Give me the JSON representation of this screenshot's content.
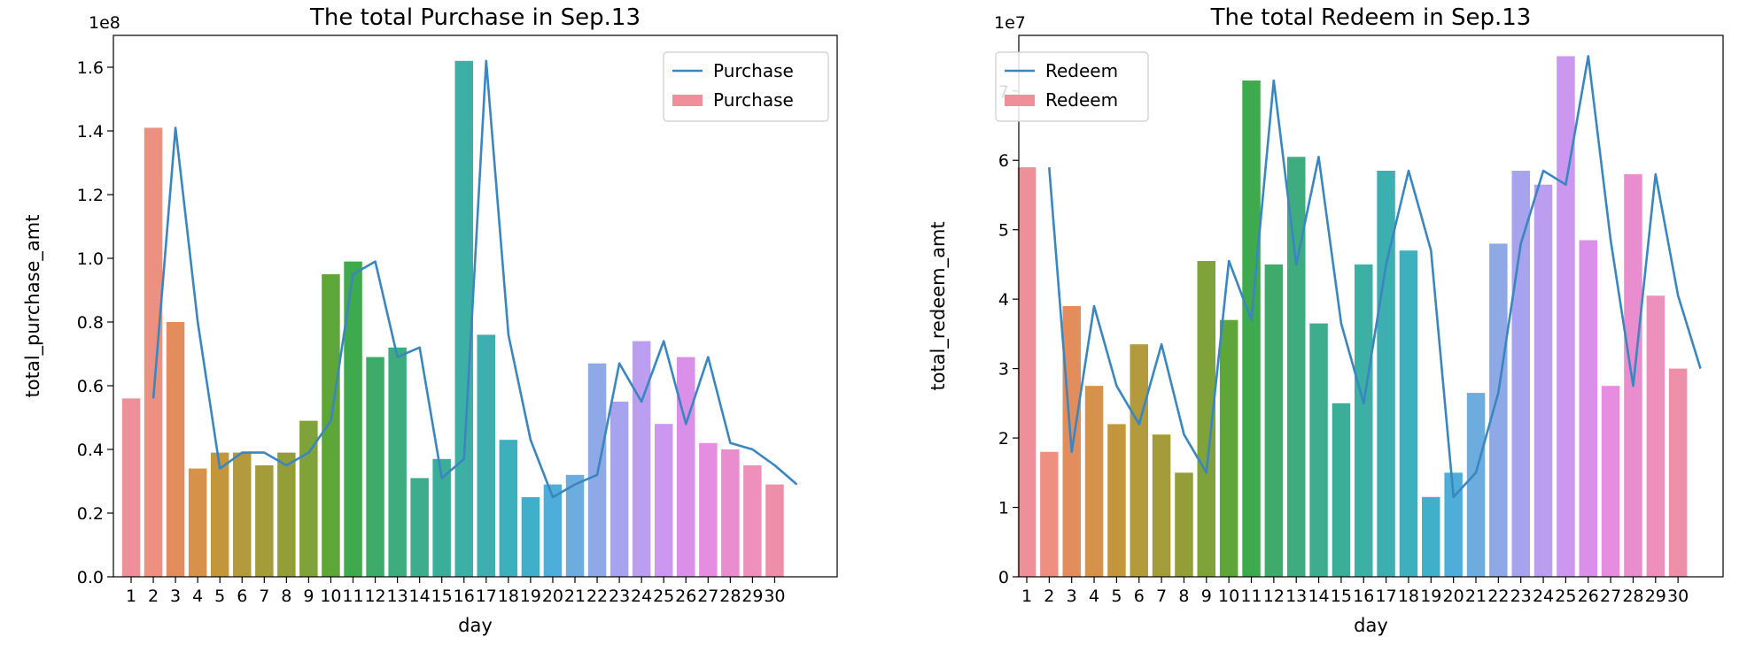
{
  "chart_data": [
    {
      "type": "bar",
      "title": "The total Purchase in Sep.13",
      "xlabel": "day",
      "ylabel": "total_purchase_amt",
      "scale_label": "1e8",
      "y_tick_labels": [
        "0.0",
        "0.2",
        "0.4",
        "0.6",
        "0.8",
        "1.0",
        "1.2",
        "1.4",
        "1.6"
      ],
      "ylim": [
        0,
        1.7
      ],
      "categories": [
        "1",
        "2",
        "3",
        "4",
        "5",
        "6",
        "7",
        "8",
        "9",
        "10",
        "11",
        "12",
        "13",
        "14",
        "15",
        "16",
        "17",
        "18",
        "19",
        "20",
        "21",
        "22",
        "23",
        "24",
        "25",
        "26",
        "27",
        "28",
        "29",
        "30"
      ],
      "series": [
        {
          "name": "Purchase",
          "kind": "bar",
          "values": [
            0.56,
            1.41,
            0.8,
            0.34,
            0.39,
            0.39,
            0.35,
            0.39,
            0.49,
            0.95,
            0.99,
            0.69,
            0.72,
            0.31,
            0.37,
            1.62,
            0.76,
            0.43,
            0.25,
            0.29,
            0.32,
            0.67,
            0.55,
            0.74,
            0.48,
            0.69,
            0.42,
            0.4,
            0.35,
            0.29
          ]
        },
        {
          "name": "Purchase",
          "kind": "line",
          "values": [
            0.56,
            1.41,
            0.8,
            0.34,
            0.39,
            0.39,
            0.35,
            0.39,
            0.49,
            0.95,
            0.99,
            0.69,
            0.72,
            0.31,
            0.37,
            1.62,
            0.76,
            0.43,
            0.25,
            0.29,
            0.32,
            0.67,
            0.55,
            0.74,
            0.48,
            0.69,
            0.42,
            0.4,
            0.35,
            0.29
          ]
        }
      ],
      "legend": {
        "placement": "top-right",
        "entries": [
          "Purchase",
          "Purchase"
        ]
      }
    },
    {
      "type": "bar",
      "title": "The total Redeem in Sep.13",
      "xlabel": "day",
      "ylabel": "total_redeem_amt",
      "scale_label": "1e7",
      "y_tick_labels": [
        "0",
        "1",
        "2",
        "3",
        "4",
        "5",
        "6",
        "7"
      ],
      "ylim": [
        0,
        7.8
      ],
      "categories": [
        "1",
        "2",
        "3",
        "4",
        "5",
        "6",
        "7",
        "8",
        "9",
        "10",
        "11",
        "12",
        "13",
        "14",
        "15",
        "16",
        "17",
        "18",
        "19",
        "20",
        "21",
        "22",
        "23",
        "24",
        "25",
        "26",
        "27",
        "28",
        "29",
        "30"
      ],
      "series": [
        {
          "name": "Redeem",
          "kind": "bar",
          "values": [
            5.9,
            1.8,
            3.9,
            2.75,
            2.2,
            3.35,
            2.05,
            1.5,
            4.55,
            3.7,
            7.15,
            4.5,
            6.05,
            3.65,
            2.5,
            4.5,
            5.85,
            4.7,
            1.15,
            1.5,
            2.65,
            4.8,
            5.85,
            5.65,
            7.5,
            4.85,
            2.75,
            5.8,
            4.05,
            3.0
          ]
        },
        {
          "name": "Redeem",
          "kind": "line",
          "values": [
            5.9,
            1.8,
            3.9,
            2.75,
            2.2,
            3.35,
            2.05,
            1.5,
            4.55,
            3.7,
            7.15,
            4.5,
            6.05,
            3.65,
            2.5,
            4.5,
            5.85,
            4.7,
            1.15,
            1.5,
            2.65,
            4.8,
            5.85,
            5.65,
            7.5,
            4.85,
            2.75,
            5.8,
            4.05,
            3.0
          ]
        }
      ],
      "legend": {
        "placement": "top-left",
        "entries": [
          "Redeem",
          "Redeem"
        ]
      }
    }
  ],
  "colors": {
    "line": "#3a86c0",
    "bar_palette": [
      "#ee8f99",
      "#ee9080",
      "#e38d5d",
      "#d6914a",
      "#c4963c",
      "#b39a3c",
      "#a49c3b",
      "#939e39",
      "#7fa23a",
      "#5ea63a",
      "#3fa94d",
      "#3eab6b",
      "#3eac7e",
      "#3dad8d",
      "#3bae99",
      "#3dafa5",
      "#3eafb1",
      "#3cb0bc",
      "#40afc9",
      "#4eaed9",
      "#6dacdf",
      "#8ea9e6",
      "#a7a3ee",
      "#bb9ef0",
      "#cb97ef",
      "#da8fe9",
      "#e68de1",
      "#ea8dce",
      "#ee8fbc",
      "#ee8faa"
    ]
  }
}
